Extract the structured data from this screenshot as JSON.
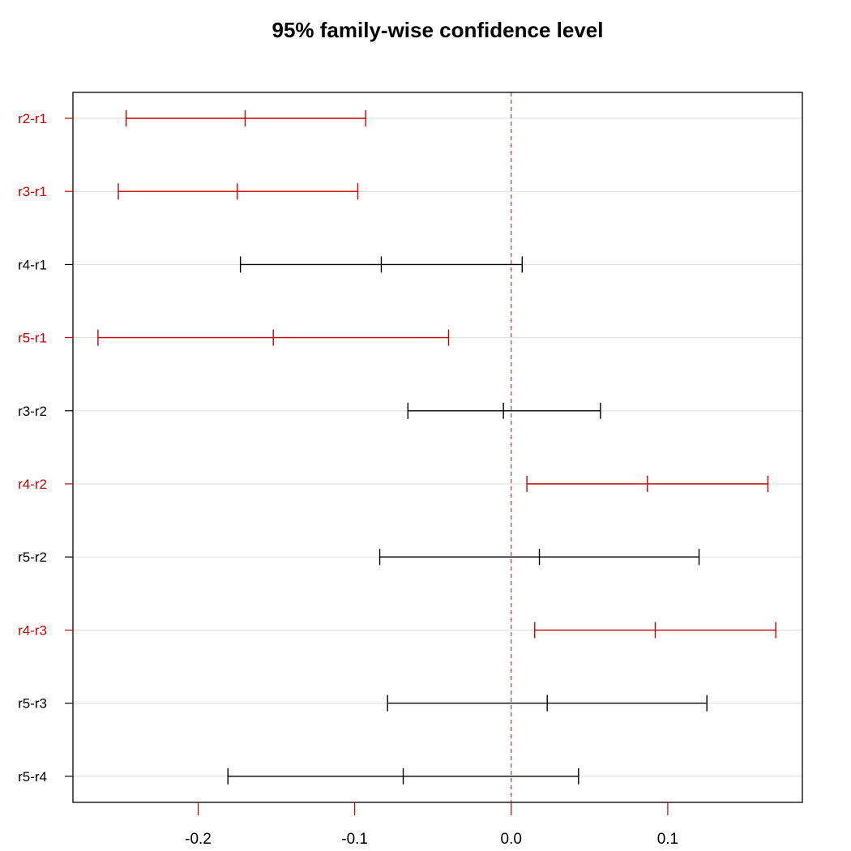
{
  "chart_data": {
    "type": "errorbar",
    "title": "95% family-wise confidence level",
    "xlabel": "",
    "ylabel": "",
    "xlim": [
      -0.28,
      0.186
    ],
    "xticks": [
      -0.2,
      -0.1,
      0.0,
      0.1
    ],
    "xtick_labels": [
      "-0.2",
      "-0.1",
      "0.0",
      "0.1"
    ],
    "reference_line": 0.0,
    "grid": "horizontal",
    "colors": {
      "significant": "#cc0000",
      "nonsignificant": "#000000",
      "reference": "#b04040",
      "grid": "#dddddd"
    },
    "comparisons": [
      {
        "label": "r2-r1",
        "estimate": -0.17,
        "lower": -0.246,
        "upper": -0.093,
        "significant": true
      },
      {
        "label": "r3-r1",
        "estimate": -0.175,
        "lower": -0.251,
        "upper": -0.098,
        "significant": true
      },
      {
        "label": "r4-r1",
        "estimate": -0.083,
        "lower": -0.173,
        "upper": 0.007,
        "significant": false
      },
      {
        "label": "r5-r1",
        "estimate": -0.152,
        "lower": -0.264,
        "upper": -0.04,
        "significant": true
      },
      {
        "label": "r3-r2",
        "estimate": -0.005,
        "lower": -0.066,
        "upper": 0.057,
        "significant": false
      },
      {
        "label": "r4-r2",
        "estimate": 0.087,
        "lower": 0.01,
        "upper": 0.164,
        "significant": true
      },
      {
        "label": "r5-r2",
        "estimate": 0.018,
        "lower": -0.084,
        "upper": 0.12,
        "significant": false
      },
      {
        "label": "r4-r3",
        "estimate": 0.092,
        "lower": 0.015,
        "upper": 0.169,
        "significant": true
      },
      {
        "label": "r5-r3",
        "estimate": 0.023,
        "lower": -0.079,
        "upper": 0.125,
        "significant": false
      },
      {
        "label": "r5-r4",
        "estimate": -0.069,
        "lower": -0.181,
        "upper": 0.043,
        "significant": false
      }
    ]
  }
}
